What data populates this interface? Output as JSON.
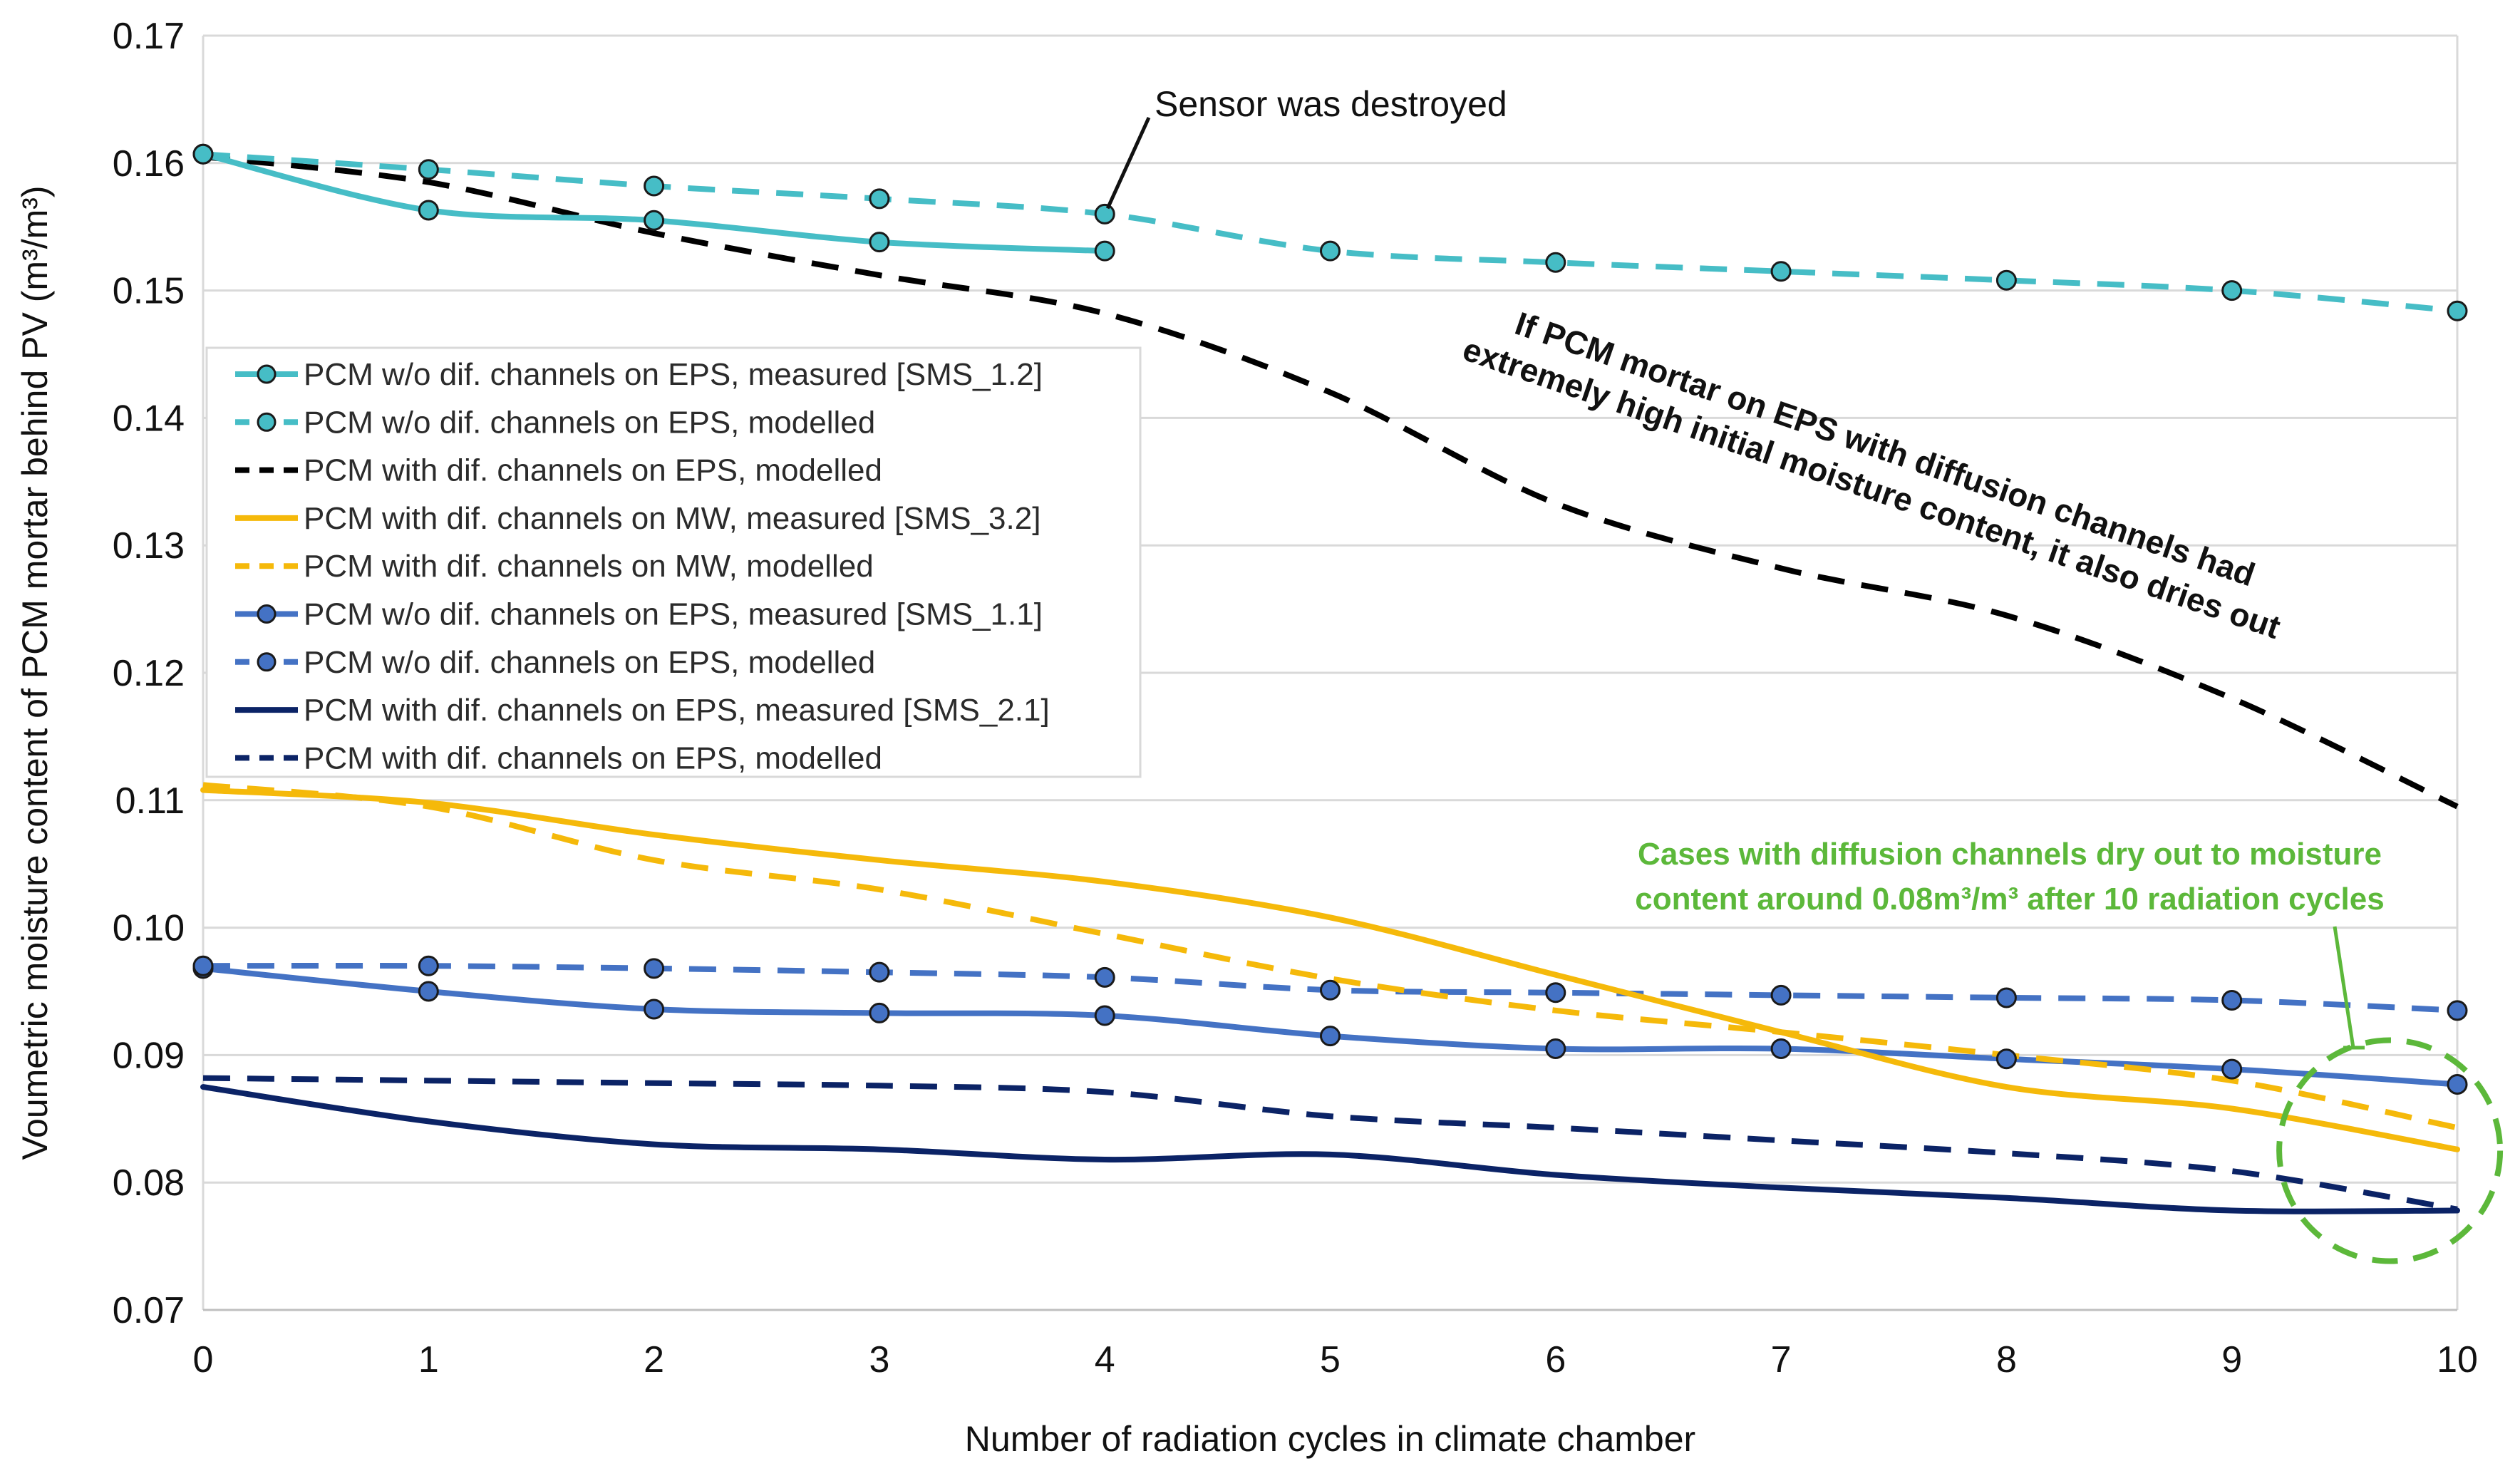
{
  "chart_data": {
    "type": "line",
    "title": "",
    "xlabel": "Number of radiation cycles in climate chamber",
    "ylabel": "Voumetric moisture content of PCM mortar behind PV (m³/m³)",
    "xlim": [
      0,
      10
    ],
    "ylim": [
      0.07,
      0.17
    ],
    "x_ticks": [
      "0",
      "1",
      "2",
      "3",
      "4",
      "5",
      "6",
      "7",
      "8",
      "9",
      "10"
    ],
    "y_ticks": [
      "0.07",
      "0.08",
      "0.09",
      "0.10",
      "0.11",
      "0.12",
      "0.13",
      "0.14",
      "0.15",
      "0.16",
      "0.17"
    ],
    "grid": "horizontal",
    "legend_position": "upper-left",
    "series": [
      {
        "name": "PCM w/o dif. channels on EPS, measured [SMS_1.2]",
        "color": "#46bdc6",
        "dash": "solid",
        "markers": true,
        "x": [
          0,
          1,
          2,
          3,
          4
        ],
        "values": [
          0.1607,
          0.1563,
          0.1555,
          0.1538,
          0.1531
        ]
      },
      {
        "name": "PCM w/o dif. channels on EPS, modelled",
        "color": "#46bdc6",
        "dash": "dashed",
        "markers": true,
        "x": [
          0,
          1,
          2,
          3,
          4,
          5,
          6,
          7,
          8,
          9,
          10
        ],
        "values": [
          0.1607,
          0.1595,
          0.1582,
          0.1572,
          0.156,
          0.1531,
          0.1522,
          0.1515,
          0.1508,
          0.15,
          0.1484
        ]
      },
      {
        "name": "PCM with dif. channels on EPS, modelled",
        "color": "#000000",
        "dash": "dashed",
        "markers": false,
        "x": [
          0,
          1,
          2,
          3,
          4,
          5,
          6,
          7,
          8,
          9,
          10
        ],
        "values": [
          0.1605,
          0.1585,
          0.1545,
          0.1512,
          0.1482,
          0.142,
          0.1333,
          0.1282,
          0.1245,
          0.118,
          0.1095
        ]
      },
      {
        "name": "PCM with dif. channels on MW, measured [SMS_3.2]",
        "color": "#f5b90a",
        "dash": "solid",
        "markers": false,
        "x": [
          0,
          1,
          2,
          3,
          4,
          5,
          6,
          7,
          8,
          9,
          10
        ],
        "values": [
          0.1108,
          0.1098,
          0.1073,
          0.1053,
          0.1036,
          0.1008,
          0.0963,
          0.0918,
          0.0875,
          0.0858,
          0.0826
        ]
      },
      {
        "name": "PCM with dif. channels on MW, modelled",
        "color": "#f5b90a",
        "dash": "dashed",
        "markers": false,
        "x": [
          0,
          1,
          2,
          3,
          4,
          5,
          6,
          7,
          8,
          9,
          10
        ],
        "values": [
          0.1112,
          0.1095,
          0.1053,
          0.103,
          0.0995,
          0.096,
          0.0935,
          0.0918,
          0.09,
          0.088,
          0.0843
        ]
      },
      {
        "name": "PCM w/o dif. channels on EPS, measured [SMS_1.1]",
        "color": "#4472c4",
        "dash": "solid",
        "markers": true,
        "x": [
          0,
          1,
          2,
          3,
          4,
          5,
          6,
          7,
          8,
          9,
          10
        ],
        "values": [
          0.0968,
          0.095,
          0.0936,
          0.0933,
          0.0931,
          0.0915,
          0.0905,
          0.0905,
          0.0897,
          0.0889,
          0.0877
        ]
      },
      {
        "name": "PCM w/o dif. channels on EPS, modelled",
        "color": "#4472c4",
        "dash": "dashed",
        "markers": true,
        "x": [
          0,
          1,
          2,
          3,
          4,
          5,
          6,
          7,
          8,
          9,
          10
        ],
        "values": [
          0.097,
          0.097,
          0.0968,
          0.0965,
          0.0961,
          0.0951,
          0.0949,
          0.0947,
          0.0945,
          0.0943,
          0.0935
        ]
      },
      {
        "name": "PCM with dif. channels on EPS, measured [SMS_2.1]",
        "color": "#0b2366",
        "dash": "solid",
        "markers": false,
        "x": [
          0,
          1,
          2,
          3,
          4,
          5,
          6,
          7,
          8,
          9,
          10
        ],
        "values": [
          0.0875,
          0.0848,
          0.083,
          0.0826,
          0.0818,
          0.0822,
          0.0806,
          0.0796,
          0.0788,
          0.0778,
          0.0778
        ]
      },
      {
        "name": "PCM with dif. channels on EPS, modelled",
        "color": "#0b2366",
        "dash": "dashed",
        "markers": false,
        "x": [
          0,
          1,
          2,
          3,
          4,
          5,
          6,
          7,
          8,
          9,
          10
        ],
        "values": [
          0.0882,
          0.088,
          0.0878,
          0.0876,
          0.0871,
          0.0852,
          0.0843,
          0.0833,
          0.0823,
          0.0809,
          0.0779
        ]
      }
    ],
    "annotations": {
      "sensor": {
        "text": "Sensor was destroyed",
        "x": 4,
        "y": 0.156
      },
      "eps_note": {
        "lines": [
          "If PCM mortar on EPS with diffusion channels had",
          "extremely high initial moisture content, it also dries out"
        ]
      },
      "green_note": {
        "lines": [
          "Cases with diffusion channels dry out to moisture",
          "content around 0.08m³/m³ after 10 radiation cycles"
        ],
        "color": "#5cb83a",
        "circle_center": [
          9.7,
          0.0825
        ]
      }
    }
  }
}
